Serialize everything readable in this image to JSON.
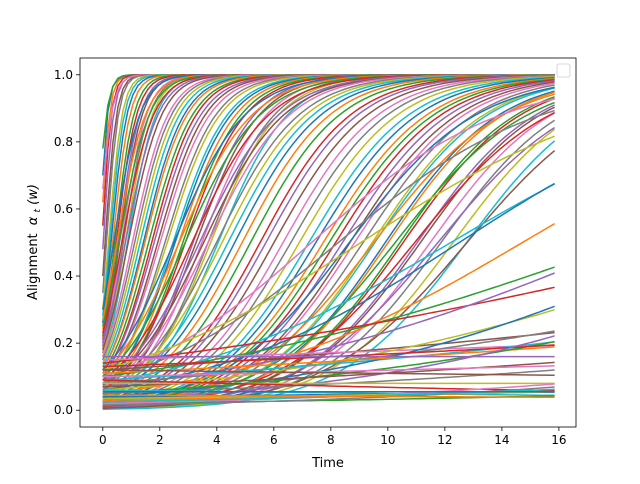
{
  "chart_data": {
    "type": "line",
    "title": "",
    "xlabel": "Time",
    "ylabel_prefix": "Alignment",
    "ylabel_math": "α",
    "ylabel_sub": "t",
    "ylabel_suffix": "(w)",
    "xlim": [
      -0.8,
      16.6
    ],
    "ylim": [
      -0.05,
      1.05
    ],
    "x_ticks": [
      0,
      2,
      4,
      6,
      8,
      10,
      12,
      14,
      16
    ],
    "x_tick_labels": [
      "0",
      "2",
      "4",
      "6",
      "8",
      "10",
      "12",
      "14",
      "16"
    ],
    "y_ticks": [
      0.0,
      0.2,
      0.4,
      0.6,
      0.8,
      1.0
    ],
    "y_tick_labels": [
      "0.0",
      "0.2",
      "0.4",
      "0.6",
      "0.8",
      "1.0"
    ],
    "x_range": [
      0,
      15.85
    ],
    "grid": false,
    "legend": "top-right, empty",
    "colors": [
      "#1f77b4",
      "#ff7f0e",
      "#2ca02c",
      "#d62728",
      "#9467bd",
      "#8c564b",
      "#e377c2",
      "#7f7f7f",
      "#bcbd22",
      "#17becf"
    ],
    "series": [
      {
        "a0": 0.7,
        "k": 7.0
      },
      {
        "a0": 0.62,
        "k": 6.5
      },
      {
        "a0": 0.78,
        "k": 5.8
      },
      {
        "a0": 0.55,
        "k": 6.0
      },
      {
        "a0": 0.48,
        "k": 5.5
      },
      {
        "a0": 0.4,
        "k": 5.0
      },
      {
        "a0": 0.66,
        "k": 4.5
      },
      {
        "a0": 0.35,
        "k": 4.8
      },
      {
        "a0": 0.3,
        "k": 4.2
      },
      {
        "a0": 0.28,
        "k": 3.9
      },
      {
        "a0": 0.26,
        "k": 3.6
      },
      {
        "a0": 0.24,
        "k": 3.3
      },
      {
        "a0": 0.22,
        "k": 3.0
      },
      {
        "a0": 0.21,
        "k": 2.8
      },
      {
        "a0": 0.2,
        "k": 2.6
      },
      {
        "a0": 0.19,
        "k": 2.5
      },
      {
        "a0": 0.18,
        "k": 2.3
      },
      {
        "a0": 0.17,
        "k": 2.2
      },
      {
        "a0": 0.16,
        "k": 2.1
      },
      {
        "a0": 0.15,
        "k": 2.0
      },
      {
        "a0": 0.3,
        "k": 2.2
      },
      {
        "a0": 0.27,
        "k": 2.0
      },
      {
        "a0": 0.25,
        "k": 1.9
      },
      {
        "a0": 0.23,
        "k": 1.8
      },
      {
        "a0": 0.2,
        "k": 1.75
      },
      {
        "a0": 0.18,
        "k": 1.7
      },
      {
        "a0": 0.16,
        "k": 1.6
      },
      {
        "a0": 0.15,
        "k": 1.55
      },
      {
        "a0": 0.14,
        "k": 1.5
      },
      {
        "a0": 0.13,
        "k": 1.45
      },
      {
        "a0": 0.12,
        "k": 1.4
      },
      {
        "a0": 0.12,
        "k": 1.35
      },
      {
        "a0": 0.11,
        "k": 1.3
      },
      {
        "a0": 0.1,
        "k": 1.28
      },
      {
        "a0": 0.1,
        "k": 1.22
      },
      {
        "a0": 0.09,
        "k": 1.2
      },
      {
        "a0": 0.09,
        "k": 1.15
      },
      {
        "a0": 0.08,
        "k": 1.12
      },
      {
        "a0": 0.08,
        "k": 1.08
      },
      {
        "a0": 0.07,
        "k": 1.05
      },
      {
        "a0": 0.07,
        "k": 1.02
      },
      {
        "a0": 0.065,
        "k": 1.0
      },
      {
        "a0": 0.06,
        "k": 0.98
      },
      {
        "a0": 0.06,
        "k": 0.95
      },
      {
        "a0": 0.05,
        "k": 0.93
      },
      {
        "a0": 0.05,
        "k": 0.9
      },
      {
        "a0": 0.045,
        "k": 0.88
      },
      {
        "a0": 0.04,
        "k": 0.86
      },
      {
        "a0": 0.04,
        "k": 0.84
      },
      {
        "a0": 0.035,
        "k": 0.82
      },
      {
        "a0": 0.12,
        "k": 0.8
      },
      {
        "a0": 0.11,
        "k": 0.78
      },
      {
        "a0": 0.1,
        "k": 0.76
      },
      {
        "a0": 0.09,
        "k": 0.74
      },
      {
        "a0": 0.08,
        "k": 0.72
      },
      {
        "a0": 0.075,
        "k": 0.71
      },
      {
        "a0": 0.07,
        "k": 0.7
      },
      {
        "a0": 0.06,
        "k": 0.69
      },
      {
        "a0": 0.055,
        "k": 0.68
      },
      {
        "a0": 0.05,
        "k": 0.67
      },
      {
        "a0": 0.045,
        "k": 0.66
      },
      {
        "a0": 0.04,
        "k": 0.65
      },
      {
        "a0": 0.035,
        "k": 0.64
      },
      {
        "a0": 0.03,
        "k": 0.63
      },
      {
        "a0": 0.028,
        "k": 0.62
      },
      {
        "a0": 0.025,
        "k": 0.61
      },
      {
        "a0": 0.022,
        "k": 0.6
      },
      {
        "a0": 0.02,
        "k": 0.59
      },
      {
        "a0": 0.018,
        "k": 0.58
      },
      {
        "a0": 0.016,
        "k": 0.57
      },
      {
        "a0": 0.015,
        "k": 0.56
      },
      {
        "a0": 0.014,
        "k": 0.55
      },
      {
        "a0": 0.013,
        "k": 0.545
      },
      {
        "a0": 0.012,
        "k": 0.54
      },
      {
        "a0": 0.011,
        "k": 0.535
      },
      {
        "a0": 0.01,
        "k": 0.53
      },
      {
        "a0": 0.01,
        "k": 0.52
      },
      {
        "a0": 0.009,
        "k": 0.515
      },
      {
        "a0": 0.008,
        "k": 0.51
      },
      {
        "a0": 0.008,
        "k": 0.505
      },
      {
        "a0": 0.007,
        "k": 0.5
      },
      {
        "a0": 0.007,
        "k": 0.495
      },
      {
        "a0": 0.006,
        "k": 0.49
      },
      {
        "a0": 0.006,
        "k": 0.485
      },
      {
        "a0": 0.005,
        "k": 0.48
      },
      {
        "a0": 0.005,
        "k": 0.475
      },
      {
        "a0": 0.0045,
        "k": 0.47
      },
      {
        "a0": 0.004,
        "k": 0.465
      },
      {
        "a0": 0.0035,
        "k": 0.46
      },
      {
        "a0": 0.003,
        "k": 0.455
      },
      {
        "a0": 0.02,
        "k": 0.45
      },
      {
        "a0": 0.015,
        "k": 0.44
      },
      {
        "a0": 0.012,
        "k": 0.43
      },
      {
        "a0": 0.01,
        "k": 0.42
      },
      {
        "a0": 0.008,
        "k": 0.41
      },
      {
        "a0": 0.006,
        "k": 0.4
      },
      {
        "a0": 0.1,
        "k": 0.3
      },
      {
        "a0": 0.09,
        "k": 0.28
      },
      {
        "a0": 0.12,
        "k": 0.22
      },
      {
        "a0": 0.08,
        "k": 0.2
      },
      {
        "a0": 0.06,
        "k": 0.22
      },
      {
        "a0": 0.05,
        "k": 0.2
      },
      {
        "a0": 0.1,
        "k": 0.12
      },
      {
        "a0": 0.14,
        "k": 0.08
      },
      {
        "a0": 0.07,
        "k": 0.14
      },
      {
        "a0": 0.12,
        "k": 0.05
      },
      {
        "a0": 0.15,
        "k": 0.02
      },
      {
        "a0": 0.08,
        "k": 0.08
      },
      {
        "a0": 0.06,
        "k": 0.12
      },
      {
        "a0": 0.09,
        "k": 0.06
      },
      {
        "a0": 0.04,
        "k": 0.15
      },
      {
        "a0": 0.11,
        "k": 0.04
      },
      {
        "a0": 0.05,
        "k": 0.1
      },
      {
        "a0": 0.13,
        "k": 0.03
      },
      {
        "a0": 0.03,
        "k": 0.14
      },
      {
        "a0": 0.07,
        "k": 0.05
      },
      {
        "a0": 0.1,
        "k": 0.02
      },
      {
        "a0": 0.05,
        "k": 0.06
      },
      {
        "a0": 0.08,
        "k": 0.0
      },
      {
        "a0": 0.06,
        "k": -0.02
      },
      {
        "a0": 0.04,
        "k": 0.02
      },
      {
        "a0": 0.03,
        "k": 0.04
      },
      {
        "a0": 0.02,
        "k": 0.05
      },
      {
        "a0": 0.09,
        "k": -0.03
      },
      {
        "a0": 0.16,
        "k": 0.0
      },
      {
        "a0": 0.12,
        "k": -0.01
      },
      {
        "a0": 0.02,
        "k": 0.09
      },
      {
        "a0": 0.015,
        "k": 0.1
      },
      {
        "a0": 0.035,
        "k": 0.03
      },
      {
        "a0": 0.025,
        "k": 0.06
      },
      {
        "a0": 0.055,
        "k": 0.0
      },
      {
        "a0": 0.045,
        "k": -0.01
      }
    ]
  }
}
